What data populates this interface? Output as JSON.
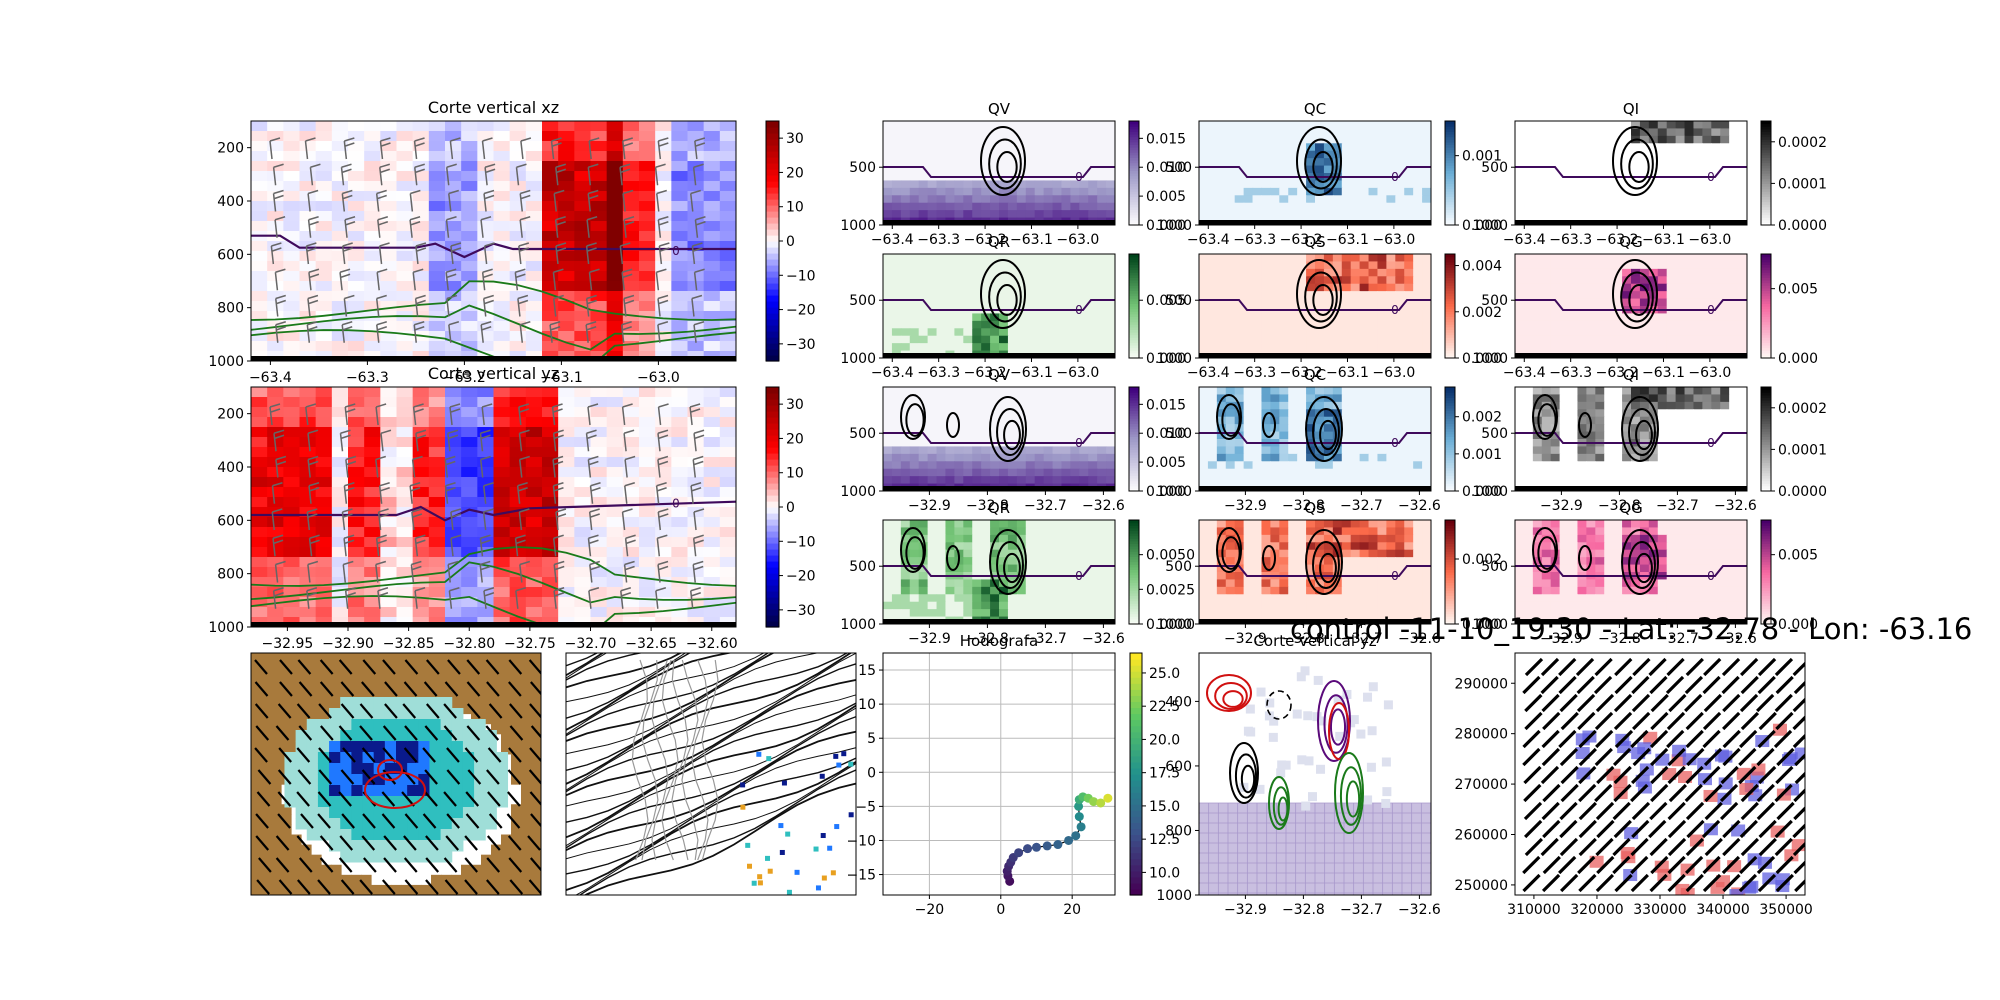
{
  "figure": {
    "suptitle": "control -11-10_19:30 - Lat: -32.78 - Lon: -63.16"
  },
  "chart_data": [
    {
      "id": "xz",
      "type": "heatmap",
      "title": "Corte vertical xz",
      "x_ticks": [
        "−63.4",
        "−63.3",
        "−63.2",
        "−63.1",
        "−63.0"
      ],
      "x_tick_values": [
        -63.4,
        -63.3,
        -63.2,
        -63.1,
        -63.0
      ],
      "xlim": [
        -63.42,
        -62.92
      ],
      "y_ticks": [
        "200",
        "400",
        "600",
        "800",
        "1000"
      ],
      "y_tick_values": [
        200,
        400,
        600,
        800,
        1000
      ],
      "ylim": [
        1000,
        100
      ],
      "colormap": "seismic",
      "colorbar_ticks": [
        "30",
        "20",
        "10",
        "0",
        "−10",
        "−20",
        "−30"
      ],
      "colorbar_tick_values": [
        30,
        20,
        10,
        0,
        -10,
        -20,
        -30
      ],
      "colorbar_range": [
        -35,
        35
      ],
      "contour_label": "0",
      "zero_line": [
        [
          -63.42,
          530
        ],
        [
          -63.39,
          530
        ],
        [
          -63.37,
          575
        ],
        [
          -63.25,
          575
        ],
        [
          -63.23,
          560
        ],
        [
          -63.2,
          610
        ],
        [
          -63.17,
          560
        ],
        [
          -63.15,
          580
        ],
        [
          -62.92,
          580
        ]
      ]
    },
    {
      "id": "yz",
      "type": "heatmap",
      "title": "Corte vertical yz",
      "x_ticks": [
        "−32.95",
        "−32.90",
        "−32.85",
        "−32.80",
        "−32.75",
        "−32.70",
        "−32.65",
        "−32.60"
      ],
      "x_tick_values": [
        -32.95,
        -32.9,
        -32.85,
        -32.8,
        -32.75,
        -32.7,
        -32.65,
        -32.6
      ],
      "xlim": [
        -32.98,
        -32.58
      ],
      "y_ticks": [
        "200",
        "400",
        "600",
        "800",
        "1000"
      ],
      "y_tick_values": [
        200,
        400,
        600,
        800,
        1000
      ],
      "ylim": [
        1000,
        100
      ],
      "colormap": "seismic",
      "colorbar_ticks": [
        "30",
        "20",
        "10",
        "0",
        "−10",
        "−20",
        "−30"
      ],
      "colorbar_tick_values": [
        30,
        20,
        10,
        0,
        -10,
        -20,
        -30
      ],
      "colorbar_range": [
        -35,
        35
      ],
      "contour_label": "0",
      "zero_line": [
        [
          -32.98,
          580
        ],
        [
          -32.86,
          580
        ],
        [
          -32.84,
          550
        ],
        [
          -32.82,
          600
        ],
        [
          -32.8,
          560
        ],
        [
          -32.78,
          580
        ],
        [
          -32.75,
          555
        ],
        [
          -32.58,
          530
        ]
      ]
    },
    {
      "id": "xz-hydro",
      "type": "heatmap",
      "x_ticks": [
        "−63.4",
        "−63.3",
        "−63.2",
        "−63.1",
        "−63.0"
      ],
      "x_tick_values": [
        -63.4,
        -63.3,
        -63.2,
        -63.1,
        -63.0
      ],
      "xlim": [
        -63.42,
        -62.92
      ],
      "y_ticks": [
        "500",
        "1000"
      ],
      "y_tick_values": [
        500,
        1000
      ],
      "ylim": [
        1000,
        100
      ],
      "panels": [
        {
          "title": "QV",
          "colormap": "Purples",
          "colorbar_ticks": [
            "0.015",
            "0.010",
            "0.005",
            "0.000"
          ],
          "colorbar_tick_values": [
            0.015,
            0.01,
            0.005,
            0.0
          ],
          "colorbar_range": [
            0,
            0.018
          ],
          "contour_label": "0"
        },
        {
          "title": "QC",
          "colormap": "Blues",
          "colorbar_ticks": [
            "0.001",
            "0.000"
          ],
          "colorbar_tick_values": [
            0.001,
            0.0
          ],
          "colorbar_range": [
            0,
            0.0015
          ],
          "contour_label": "0"
        },
        {
          "title": "QI",
          "colormap": "Greys",
          "colorbar_ticks": [
            "0.0002",
            "0.0001",
            "0.0000"
          ],
          "colorbar_tick_values": [
            0.0002,
            0.0001,
            0.0
          ],
          "colorbar_range": [
            0,
            0.00025
          ],
          "contour_label": "0"
        },
        {
          "title": "QR",
          "colormap": "Greens",
          "colorbar_ticks": [
            "0.005",
            "0.000"
          ],
          "colorbar_tick_values": [
            0.005,
            0.0
          ],
          "colorbar_range": [
            0,
            0.009
          ],
          "contour_label": "0"
        },
        {
          "title": "QS",
          "colormap": "Reds",
          "colorbar_ticks": [
            "0.004",
            "0.002",
            "0.000"
          ],
          "colorbar_tick_values": [
            0.004,
            0.002,
            0.0
          ],
          "colorbar_range": [
            0,
            0.0045
          ],
          "contour_label": "0"
        },
        {
          "title": "QG",
          "colormap": "RdPu",
          "colorbar_ticks": [
            "0.005",
            "0.000"
          ],
          "colorbar_tick_values": [
            0.005,
            0.0
          ],
          "colorbar_range": [
            0,
            0.0075
          ],
          "contour_label": "0"
        }
      ]
    },
    {
      "id": "yz-hydro",
      "type": "heatmap",
      "x_ticks": [
        "−32.9",
        "−32.8",
        "−32.7",
        "−32.6"
      ],
      "x_tick_values": [
        -32.9,
        -32.8,
        -32.7,
        -32.6
      ],
      "xlim": [
        -32.98,
        -32.58
      ],
      "y_ticks": [
        "500",
        "1000"
      ],
      "y_tick_values": [
        500,
        1000
      ],
      "ylim": [
        1000,
        100
      ],
      "panels": [
        {
          "title": "QV",
          "colormap": "Purples",
          "colorbar_ticks": [
            "0.015",
            "0.010",
            "0.005",
            "0.000"
          ],
          "colorbar_tick_values": [
            0.015,
            0.01,
            0.005,
            0.0
          ],
          "colorbar_range": [
            0,
            0.018
          ],
          "contour_label": "0"
        },
        {
          "title": "QC",
          "colormap": "Blues",
          "colorbar_ticks": [
            "0.002",
            "0.001",
            "0.000"
          ],
          "colorbar_tick_values": [
            0.002,
            0.001,
            0.0
          ],
          "colorbar_range": [
            0,
            0.0028
          ],
          "contour_label": "0"
        },
        {
          "title": "QI",
          "colormap": "Greys",
          "colorbar_ticks": [
            "0.0002",
            "0.0001",
            "0.0000"
          ],
          "colorbar_tick_values": [
            0.0002,
            0.0001,
            0.0
          ],
          "colorbar_range": [
            0,
            0.00025
          ],
          "contour_label": "0"
        },
        {
          "title": "QR",
          "colormap": "Greens",
          "colorbar_ticks": [
            "0.0050",
            "0.0025",
            "0.0000"
          ],
          "colorbar_tick_values": [
            0.005,
            0.0025,
            0.0
          ],
          "colorbar_range": [
            0,
            0.0075
          ],
          "contour_label": "0"
        },
        {
          "title": "QS",
          "colormap": "Reds",
          "colorbar_ticks": [
            "0.002",
            "0.000"
          ],
          "colorbar_tick_values": [
            0.002,
            0.0
          ],
          "colorbar_range": [
            0,
            0.0032
          ],
          "contour_label": "0"
        },
        {
          "title": "QG",
          "colormap": "RdPu",
          "colorbar_ticks": [
            "0.005",
            "0.000"
          ],
          "colorbar_tick_values": [
            0.005,
            0.0
          ],
          "colorbar_range": [
            0,
            0.0075
          ],
          "contour_label": "0"
        }
      ]
    },
    {
      "id": "map-reflectivity",
      "type": "heatmap",
      "title": ""
    },
    {
      "id": "map-streamlines",
      "type": "heatmap",
      "title": ""
    },
    {
      "id": "hodograph",
      "type": "scatter",
      "title": "Hodografa",
      "x_ticks": [
        "−20",
        "0",
        "20"
      ],
      "x_tick_values": [
        -20,
        0,
        20
      ],
      "xlim": [
        -33,
        32
      ],
      "y_ticks": [
        "15",
        "10",
        "5",
        "0",
        "−5",
        "−10",
        "−15"
      ],
      "y_tick_values": [
        15,
        10,
        5,
        0,
        -5,
        -10,
        -15
      ],
      "ylim": [
        -18,
        17.5
      ],
      "colorbar_ticks": [
        "25.0",
        "22.5",
        "20.0",
        "17.5",
        "15.0",
        "12.5",
        "10.0"
      ],
      "colorbar_tick_values": [
        25.0,
        22.5,
        20.0,
        17.5,
        15.0,
        12.5,
        10.0
      ],
      "colorbar_range": [
        8.3,
        26.5
      ],
      "x": [
        2.5,
        2.0,
        1.8,
        2.2,
        2.8,
        3.5,
        5.0,
        7.5,
        10.0,
        13.0,
        16.0,
        19.0,
        21.0,
        22.5,
        22.0,
        21.8,
        22.0,
        23.0,
        24.5,
        26.0,
        28.0,
        30.0
      ],
      "y": [
        -16.0,
        -15.2,
        -14.5,
        -13.8,
        -13.2,
        -12.5,
        -11.8,
        -11.2,
        -11.0,
        -10.8,
        -10.6,
        -10.0,
        -9.3,
        -8.0,
        -6.5,
        -5.0,
        -4.0,
        -3.6,
        -3.8,
        -4.3,
        -4.5,
        -3.8
      ],
      "c": [
        9.0,
        9.5,
        10.0,
        10.5,
        11.0,
        11.5,
        12.0,
        12.5,
        13.0,
        13.5,
        14.0,
        14.5,
        15.0,
        16.0,
        17.0,
        18.0,
        19.5,
        21.0,
        22.5,
        23.5,
        24.5,
        25.5
      ]
    },
    {
      "id": "vertical-cut-hydro",
      "type": "heatmap",
      "title": "Corte vertical yz",
      "x_ticks": [
        "−32.9",
        "−32.8",
        "−32.7",
        "−32.6"
      ],
      "x_tick_values": [
        -32.9,
        -32.8,
        -32.7,
        -32.6
      ],
      "xlim": [
        -32.98,
        -32.58
      ],
      "y_ticks": [
        "400",
        "600",
        "800",
        "1000"
      ],
      "y_tick_values": [
        400,
        600,
        800,
        1000
      ],
      "ylim": [
        1000,
        250
      ]
    },
    {
      "id": "map-projected",
      "type": "heatmap",
      "title": "",
      "x_ticks": [
        "310000",
        "320000",
        "330000",
        "340000",
        "350000"
      ],
      "x_tick_values": [
        310000,
        320000,
        330000,
        340000,
        350000
      ],
      "xlim": [
        307000,
        353000
      ],
      "y_ticks": [
        "290000",
        "280000",
        "270000",
        "260000",
        "250000"
      ],
      "y_tick_values": [
        290000,
        280000,
        270000,
        260000,
        250000
      ],
      "ylim": [
        248000,
        296000
      ]
    }
  ]
}
